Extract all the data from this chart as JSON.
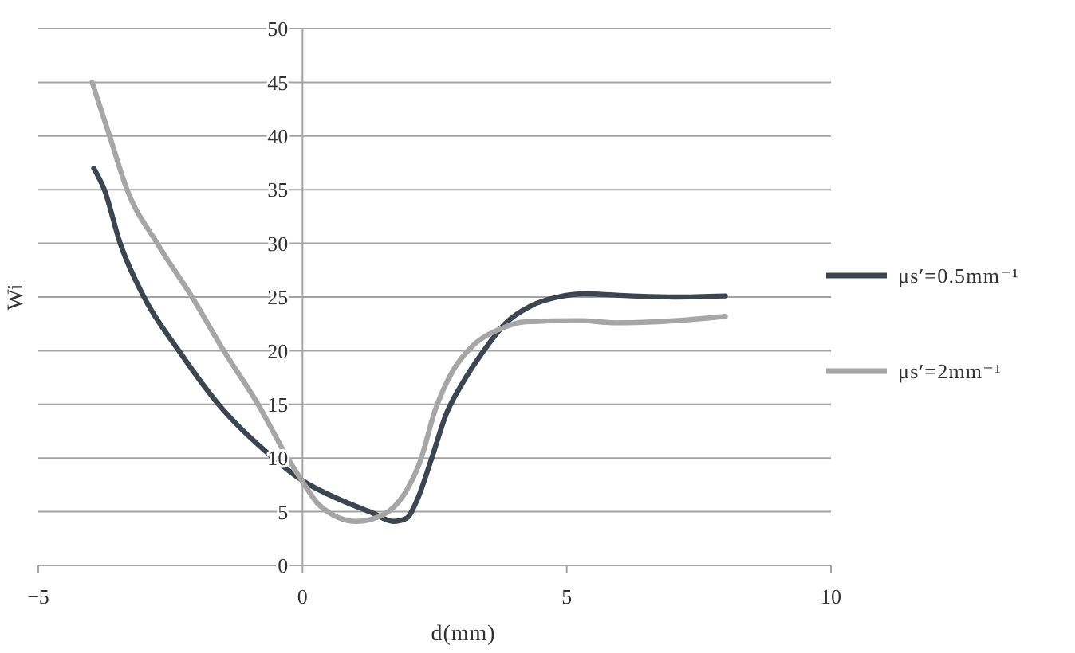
{
  "chart_data": {
    "type": "line",
    "xlabel": "d(mm)",
    "ylabel": "Wi",
    "xlim": [
      -5,
      10
    ],
    "ylim": [
      0,
      50
    ],
    "xticks": [
      {
        "value": -5,
        "label": "−5"
      },
      0,
      5,
      10
    ],
    "yticks": [
      0,
      5,
      10,
      15,
      20,
      25,
      30,
      35,
      40,
      45,
      50
    ],
    "grid": "y",
    "legend": "right",
    "series": [
      {
        "name": "μs′=0.5mm⁻¹",
        "color": "#3b4650",
        "x": [
          -3.95,
          -3.75,
          -3.45,
          -3,
          -2.34,
          -1.59,
          -0.55,
          0,
          0.72,
          1.32,
          1.72,
          1.97,
          2.17,
          2.42,
          2.72,
          3.03,
          3.43,
          3.83,
          4.33,
          4.83,
          5.34,
          6.24,
          7.04,
          8
        ],
        "values": [
          37,
          35,
          30,
          25,
          20,
          15,
          10,
          7.9,
          6.1,
          4.9,
          4.1,
          4.4,
          6.1,
          9.6,
          14.1,
          17,
          20,
          22.5,
          24.2,
          25,
          25.3,
          25.1,
          25,
          25.1
        ]
      },
      {
        "name": "μs′=2mm⁻¹",
        "color": "#a6a6a6",
        "x": [
          -3.98,
          -3.65,
          -3.32,
          -2.75,
          -2.09,
          -1.49,
          -0.84,
          -0.28,
          0,
          0.32,
          1.02,
          1.52,
          1.92,
          2.22,
          2.52,
          2.83,
          3.23,
          3.73,
          4.23,
          5.24,
          5.94,
          6.74,
          8
        ],
        "values": [
          45,
          40,
          35,
          30,
          25,
          20,
          15,
          10,
          7.8,
          5.6,
          4.1,
          4.7,
          6.6,
          9.6,
          14.6,
          18,
          20.5,
          22,
          22.7,
          22.8,
          22.6,
          22.7,
          23.2
        ]
      }
    ]
  }
}
